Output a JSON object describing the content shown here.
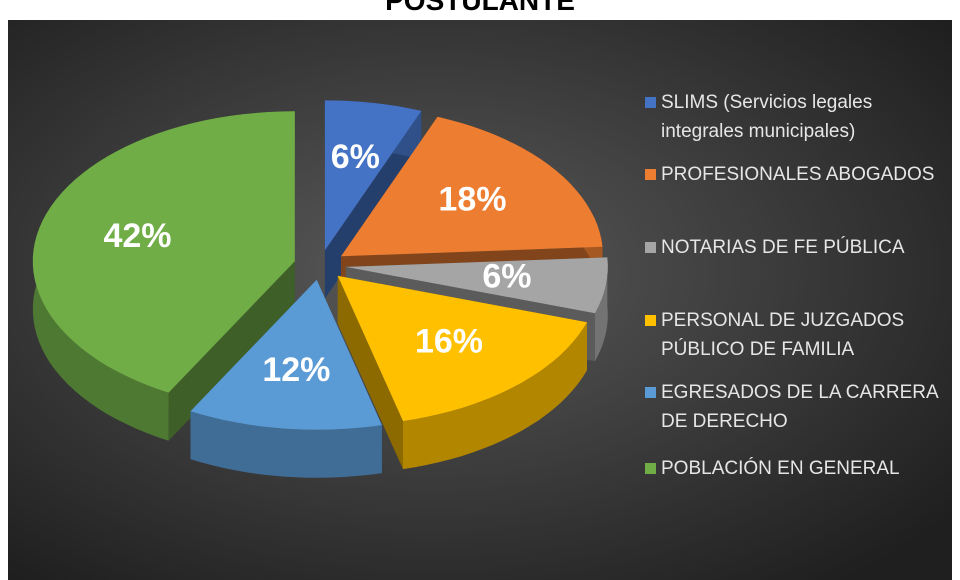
{
  "chart_data": {
    "type": "pie3d",
    "title": "POSTULANTE",
    "categories": [
      "SLIMS (Servicios legales integrales municipales)",
      "PROFESIONALES ABOGADOS",
      "NOTARIAS DE FE PÚBLICA",
      "PERSONAL DE JUZGADOS PÚBLICO DE FAMILIA",
      "EGRESADOS DE LA CARRERA DE DERECHO",
      "POBLACIÓN EN GENERAL"
    ],
    "values": [
      6,
      18,
      6,
      16,
      12,
      42
    ],
    "value_labels": [
      "6%",
      "18%",
      "6%",
      "16%",
      "12%",
      "42%"
    ],
    "colors": [
      "#4472c4",
      "#ed7d31",
      "#a5a5a5",
      "#ffc000",
      "#5b9bd5",
      "#70ad47"
    ],
    "legend": "right"
  }
}
